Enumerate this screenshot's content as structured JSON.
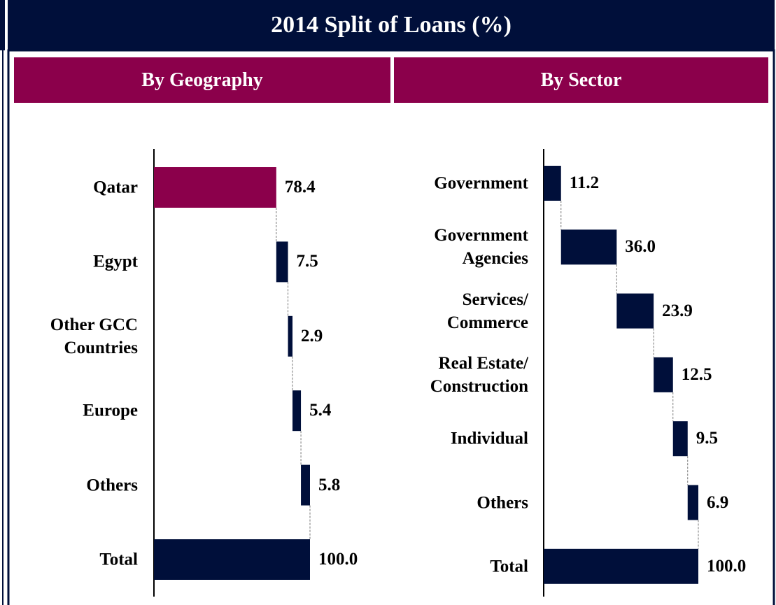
{
  "title": "2014 Split of Loans (%)",
  "chart_data": [
    {
      "type": "waterfall",
      "title": "By Geography",
      "categories": [
        "Qatar",
        "Egypt",
        "Other GCC\nCountries",
        "Europe",
        "Others",
        "Total"
      ],
      "values": [
        78.4,
        7.5,
        2.9,
        5.4,
        5.8,
        100
      ],
      "value_labels": [
        "78.4",
        "7.5",
        "2.9",
        "5.4",
        "5.8",
        "100.0"
      ],
      "colors": [
        "#8b004b",
        "#000f3a",
        "#000f3a",
        "#000f3a",
        "#000f3a",
        "#000f3a"
      ],
      "xlim": [
        0,
        100
      ]
    },
    {
      "type": "waterfall",
      "title": "By Sector",
      "categories": [
        "Government",
        "Government\nAgencies",
        "Services/\nCommerce",
        "Real Estate/\nConstruction",
        "Individual",
        "Others",
        "Total"
      ],
      "values": [
        11.2,
        36.0,
        23.9,
        12.5,
        9.5,
        6.9,
        100
      ],
      "value_labels": [
        "11.2",
        "36.0",
        "23.9",
        "12.5",
        "9.5",
        "6.9",
        "100.0"
      ],
      "colors": [
        "#000f3a",
        "#000f3a",
        "#000f3a",
        "#000f3a",
        "#000f3a",
        "#000f3a",
        "#000f3a"
      ],
      "xlim": [
        0,
        100
      ]
    }
  ]
}
